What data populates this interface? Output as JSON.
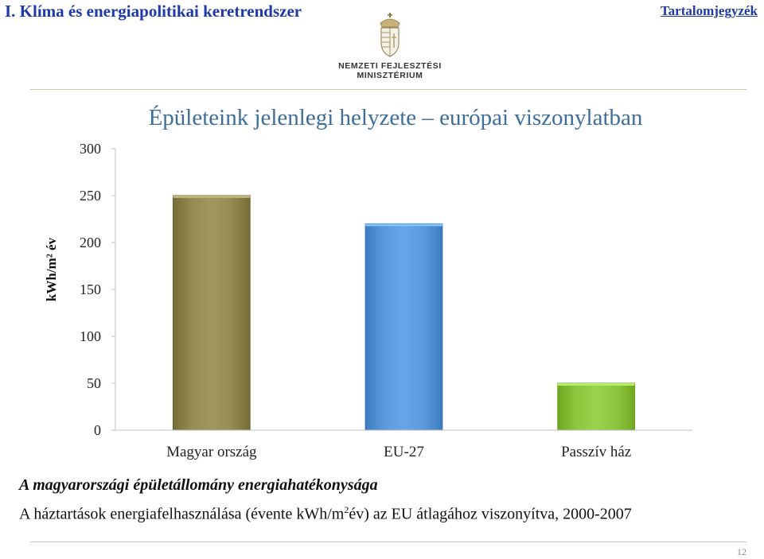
{
  "header": {
    "section_title": "I. Klíma és energiapolitikai keretrendszer",
    "toc_link": "Tartalomjegyzék"
  },
  "logo": {
    "line1": "NEMZETI FEJLESZTÉSI",
    "line2": "MINISZTÉRIUM"
  },
  "chart_data": {
    "type": "bar",
    "title": "Épületeink jelenlegi helyzete – európai viszonylatban",
    "categories": [
      "Magyar ország",
      "EU-27",
      "Passzív ház"
    ],
    "values": [
      250,
      220,
      50
    ],
    "colors": [
      "#958c55",
      "#5b9bdd",
      "#8ec63f"
    ],
    "ylabel": "kWh/m² év",
    "ylim": [
      0,
      300
    ],
    "yticks": [
      "0",
      "50",
      "100",
      "150",
      "200",
      "250",
      "300"
    ],
    "grid": false
  },
  "captions": {
    "line1": "A magyarországi épületállomány energiahatékonysága",
    "line2_before": "A háztartások energiafelhasználása (évente kWh/m",
    "line2_sup": "2",
    "line2_after": "év) az EU átlagához viszonyítva, 2000-2007"
  },
  "footer": {
    "page_number": "12"
  }
}
